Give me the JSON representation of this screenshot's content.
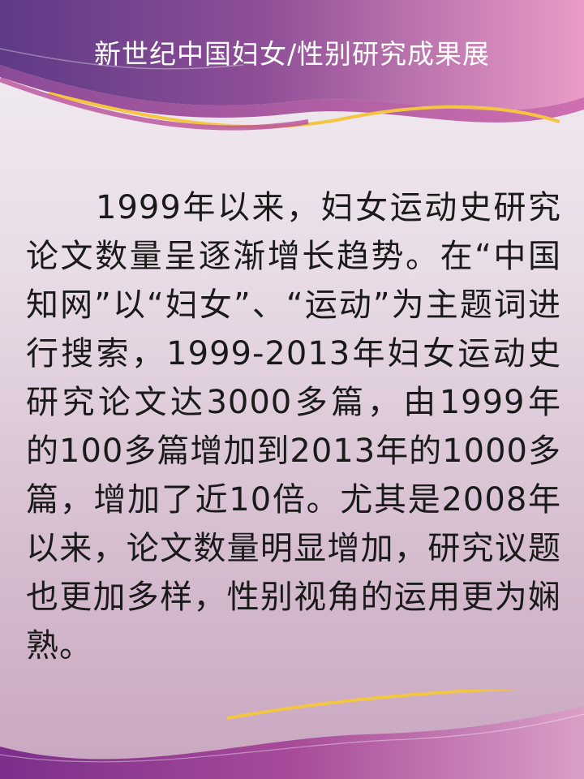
{
  "slide": {
    "title": "新世纪中国妇女/性别研究成果展",
    "body": "1999年以来，妇女运动史研究论文数量呈逐渐增长趋势。在“中国知网”以“妇女”、“运动”为主题词进行搜索，1999-2013年妇女运动史研究论文达3000多篇，由1999年的100多篇增加到2013年的1000多篇，增加了近10倍。尤其是2008年以来，论文数量明显增加，研究议题也更加多样，性别视角的运用更为娴熟。"
  },
  "colors": {
    "banner_dark": "#6b3f88",
    "banner_mid": "#a85c9c",
    "banner_light": "#e79ac3",
    "accent_gold": "#f4c542",
    "text": "#1a1a1a"
  }
}
